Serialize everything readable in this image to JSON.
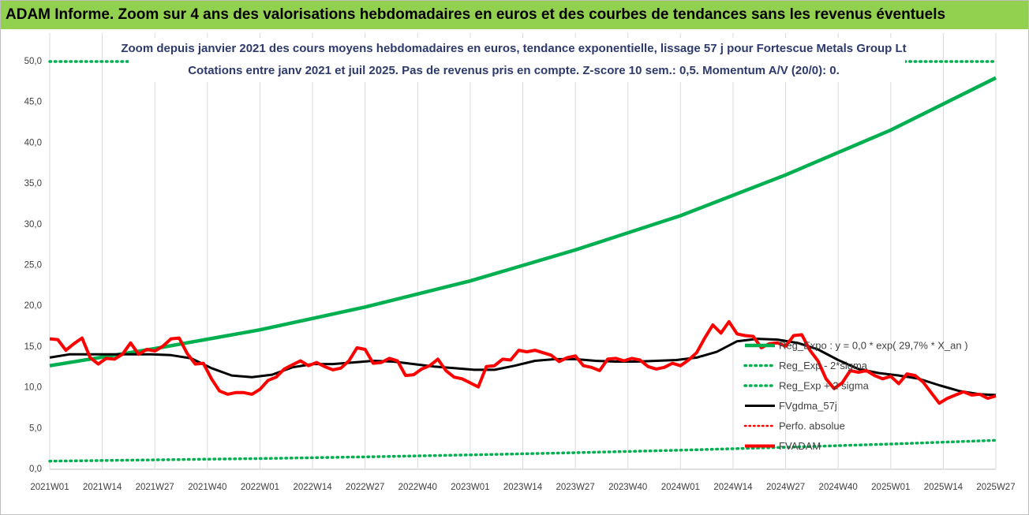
{
  "banner": {
    "title": "ADAM Informe. Zoom sur 4 ans des valorisations hebdomadaires en euros et des courbes de tendances sans les revenus éventuels"
  },
  "colors": {
    "banner_bg": "#92d050",
    "reg_expo": "#00b050",
    "reg_band": "#00b050",
    "fvgdma": "#000000",
    "perfo": "#ff0000",
    "fvadam": "#ff0000"
  },
  "chart_data": {
    "type": "line",
    "title_line1": "Zoom depuis janvier 2021 des cours moyens hebdomadaires en euros, tendance exponentielle, lissage 57 j pour Fortescue Metals Group Lt",
    "title_line2": "Cotations entre janv 2021 et juil 2025. Pas de revenus pris en compte. Z-score 10 sem.: 0,5. Momentum A/V (20/0): 0.",
    "x_ticks": [
      "2021W01",
      "2021W14",
      "2021W27",
      "2021W40",
      "2022W01",
      "2022W14",
      "2022W27",
      "2022W40",
      "2023W01",
      "2023W14",
      "2023W27",
      "2023W40",
      "2024W01",
      "2024W14",
      "2024W27",
      "2024W40",
      "2025W01",
      "2025W14",
      "2025W27"
    ],
    "x_range": [
      0,
      234
    ],
    "ylim": [
      0,
      50
    ],
    "y_ticks": [
      "0,0",
      "5,0",
      "10,0",
      "15,0",
      "20,0",
      "25,0",
      "30,0",
      "35,0",
      "40,0",
      "45,0",
      "50,0"
    ],
    "grid": "vertical",
    "legend_position": "right",
    "series": [
      {
        "name": "Reg_Expo : y = 0,0 * exp( 29,7% *  X_an )",
        "style": "solid",
        "x": [
          0,
          26,
          52,
          78,
          104,
          130,
          156,
          182,
          208,
          234
        ],
        "y": [
          12.6,
          14.7,
          17.0,
          19.8,
          23.0,
          26.8,
          31.0,
          36.0,
          41.5,
          47.9
        ]
      },
      {
        "name": "Reg_Exp - 2*sigma",
        "style": "dotted",
        "x": [
          0,
          26,
          52,
          78,
          104,
          130,
          156,
          182,
          208,
          234
        ],
        "y": [
          0.9,
          1.05,
          1.22,
          1.42,
          1.66,
          1.93,
          2.24,
          2.6,
          3.0,
          3.45
        ]
      },
      {
        "name": "Reg_Exp + 2 sigma",
        "style": "dotted",
        "x": [
          0,
          20,
          200,
          234
        ],
        "y": [
          49.9,
          49.9,
          49.9,
          49.9
        ],
        "segments": [
          [
            0,
            20
          ],
          [
            200,
            234
          ]
        ]
      },
      {
        "name": "FVgdma_57j",
        "style": "solid",
        "x": [
          0,
          5,
          10,
          15,
          20,
          25,
          30,
          35,
          40,
          45,
          50,
          55,
          60,
          65,
          70,
          75,
          80,
          85,
          90,
          95,
          100,
          105,
          110,
          115,
          120,
          125,
          130,
          135,
          140,
          145,
          150,
          155,
          160,
          165,
          170,
          175,
          180,
          185,
          190,
          195,
          200,
          205,
          210,
          215,
          220,
          225,
          230,
          234
        ],
        "y": [
          13.6,
          14.0,
          14.0,
          14.0,
          14.0,
          14.0,
          13.9,
          13.5,
          12.3,
          11.4,
          11.2,
          11.5,
          12.4,
          12.8,
          12.8,
          13.0,
          13.2,
          13.1,
          12.8,
          12.5,
          12.3,
          12.1,
          12.1,
          12.6,
          13.2,
          13.4,
          13.4,
          13.2,
          13.1,
          13.1,
          13.2,
          13.3,
          13.6,
          14.3,
          15.6,
          15.9,
          15.8,
          15.4,
          14.6,
          13.3,
          12.2,
          11.7,
          11.4,
          11.0,
          10.2,
          9.5,
          9.1,
          9.0
        ]
      },
      {
        "name": "Perfo. absolue",
        "style": "dotted",
        "x": [],
        "y": []
      },
      {
        "name": "FVADAM",
        "style": "solid",
        "x": [
          0,
          2,
          4,
          6,
          8,
          10,
          12,
          14,
          16,
          18,
          20,
          22,
          24,
          26,
          28,
          30,
          32,
          34,
          36,
          38,
          40,
          42,
          44,
          46,
          48,
          50,
          52,
          54,
          56,
          58,
          60,
          62,
          64,
          66,
          68,
          70,
          72,
          74,
          76,
          78,
          80,
          82,
          84,
          86,
          88,
          90,
          92,
          94,
          96,
          98,
          100,
          102,
          104,
          106,
          108,
          110,
          112,
          114,
          116,
          118,
          120,
          122,
          124,
          126,
          128,
          130,
          132,
          134,
          136,
          138,
          140,
          142,
          144,
          146,
          148,
          150,
          152,
          154,
          156,
          158,
          160,
          162,
          164,
          166,
          168,
          170,
          172,
          174,
          176,
          178,
          180,
          182,
          184,
          186,
          188,
          190,
          192,
          194,
          196,
          198,
          200,
          202,
          204,
          206,
          208,
          210,
          212,
          214,
          216,
          218,
          220,
          222,
          224,
          226,
          228,
          230,
          232,
          234
        ],
        "y": [
          15.9,
          15.8,
          14.5,
          15.3,
          16.0,
          13.6,
          12.8,
          13.5,
          13.4,
          14.0,
          15.4,
          14.0,
          14.6,
          14.4,
          15.0,
          15.9,
          16.0,
          14.1,
          12.8,
          12.9,
          11.0,
          9.5,
          9.1,
          9.3,
          9.3,
          9.1,
          9.7,
          10.8,
          11.2,
          12.2,
          12.7,
          13.2,
          12.6,
          13.0,
          12.5,
          12.1,
          12.3,
          13.2,
          14.8,
          14.6,
          12.9,
          13.0,
          13.5,
          13.2,
          11.4,
          11.5,
          12.2,
          12.6,
          13.4,
          12.0,
          11.2,
          11.0,
          10.5,
          10.0,
          12.5,
          12.6,
          13.4,
          13.3,
          14.5,
          14.3,
          14.5,
          14.2,
          13.9,
          13.1,
          13.6,
          13.8,
          12.6,
          12.4,
          12.0,
          13.4,
          13.5,
          13.2,
          13.5,
          13.3,
          12.5,
          12.2,
          12.4,
          12.9,
          12.6,
          13.3,
          14.2,
          16.0,
          17.6,
          16.6,
          18.0,
          16.5,
          16.3,
          16.2,
          14.8,
          15.3,
          15.4,
          15.0,
          16.3,
          16.4,
          14.5,
          13.2,
          11.0,
          9.8,
          10.5,
          12.0,
          11.8,
          12.0,
          11.4,
          11.0,
          11.3,
          10.4,
          11.6,
          11.4,
          10.6,
          9.3,
          8.0,
          8.6,
          9.0,
          9.4,
          9.0,
          9.1,
          8.6,
          8.9
        ]
      }
    ]
  }
}
